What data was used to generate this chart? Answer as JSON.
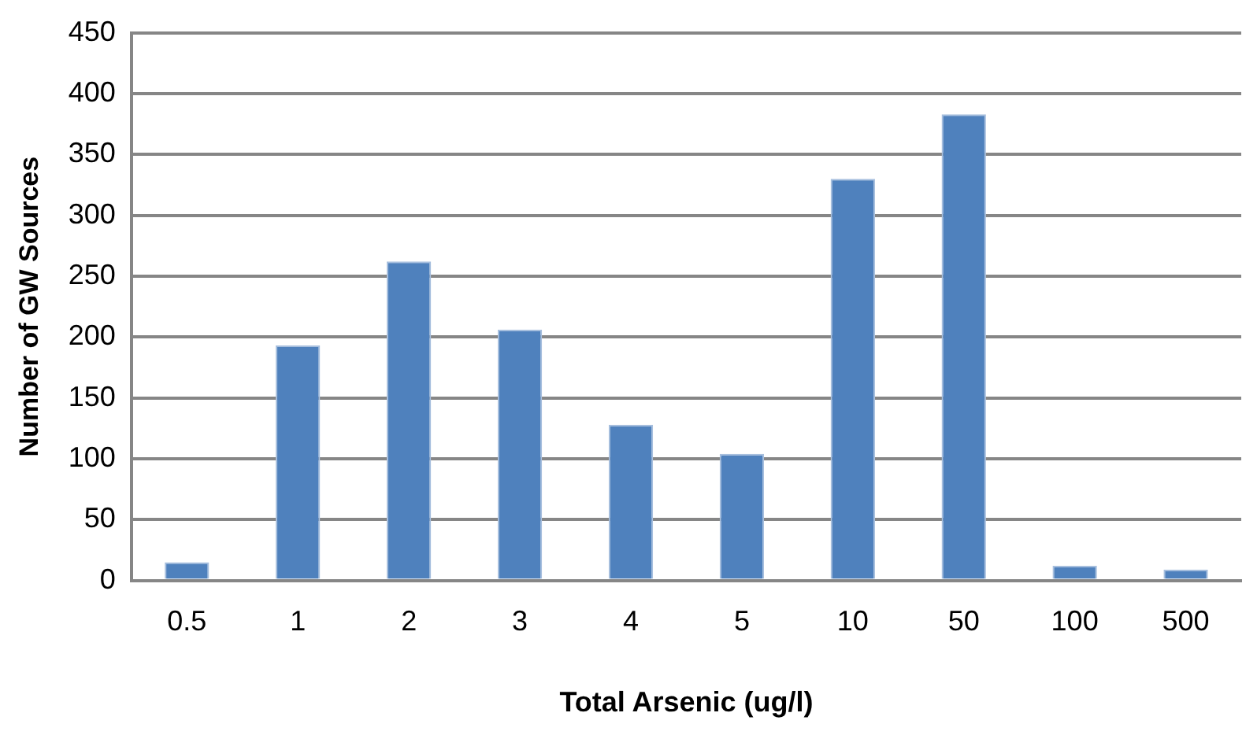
{
  "chart_data": {
    "type": "bar",
    "xlabel": "Total Arsenic (ug/l)",
    "ylabel": "Number of GW Sources",
    "categories": [
      "0.5",
      "1",
      "2",
      "3",
      "4",
      "5",
      "10",
      "50",
      "100",
      "500"
    ],
    "values": [
      15,
      193,
      262,
      206,
      128,
      104,
      330,
      383,
      12,
      9
    ],
    "color": "#4f81bd",
    "ylim": [
      0,
      450
    ],
    "yticks": [
      0,
      50,
      100,
      150,
      200,
      250,
      300,
      350,
      400,
      450
    ],
    "grid": "y",
    "legend": false
  }
}
